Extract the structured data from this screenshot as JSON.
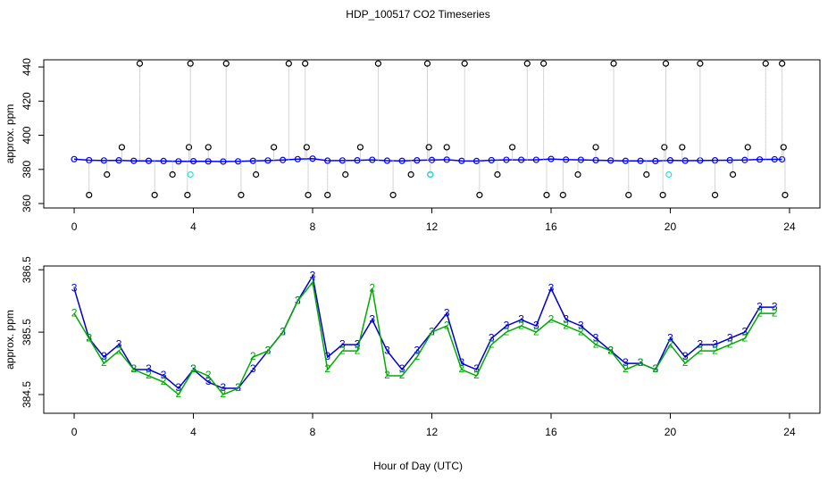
{
  "chart_data": [
    {
      "type": "line",
      "title": "HDP_100517  CO2 Timeseries",
      "ylabel": "approx. ppm",
      "xlim": [
        -1.02,
        25.02
      ],
      "xticks": [
        0,
        4,
        8,
        12,
        16,
        20,
        24
      ],
      "ylim": [
        357.4,
        444.2
      ],
      "yticks": [
        360,
        380,
        400,
        420,
        440
      ],
      "series": [
        {
          "style": "line+points",
          "color": "#0000ff",
          "x": [
            0,
            0.5,
            1,
            1.5,
            2,
            2.5,
            3,
            3.5,
            4,
            4.5,
            5,
            5.5,
            6,
            6.5,
            7,
            7.5,
            8,
            8.5,
            9,
            9.5,
            10,
            10.5,
            11,
            11.5,
            12,
            12.5,
            13,
            13.5,
            14,
            14.5,
            15,
            15.5,
            16,
            16.5,
            17,
            17.5,
            18,
            18.5,
            19,
            19.5,
            20,
            20.5,
            21,
            21.5,
            22,
            22.5,
            23,
            23.5,
            23.75
          ],
          "values": [
            386,
            385.4,
            385.2,
            385.3,
            385,
            385,
            384.9,
            384.7,
            384.8,
            384.7,
            384.6,
            384.7,
            385,
            385.2,
            385.5,
            386,
            386.3,
            385.1,
            385.2,
            385.3,
            385.6,
            385.1,
            385,
            385.3,
            385.5,
            385.7,
            385,
            384.9,
            385.4,
            385.6,
            385.6,
            385.6,
            386.1,
            385.7,
            385.6,
            385.4,
            385.2,
            385,
            385,
            384.9,
            385.3,
            385.1,
            385.2,
            385.3,
            385.4,
            385.5,
            385.8,
            385.9,
            385.9
          ]
        },
        {
          "style": "outliers",
          "color": "#000000",
          "x": [
            0.5,
            1.1,
            1.6,
            2.2,
            2.7,
            3.3,
            3.8,
            3.85,
            3.9,
            4.5,
            5.1,
            5.6,
            6.1,
            6.7,
            7.2,
            7.75,
            7.8,
            7.85,
            8.5,
            9.1,
            9.6,
            10.2,
            10.7,
            11.3,
            11.85,
            11.9,
            11.95,
            12.5,
            13.1,
            13.6,
            14.2,
            14.7,
            15.2,
            15.75,
            15.85,
            16.4,
            16.9,
            17.5,
            18.1,
            18.6,
            19.2,
            19.75,
            19.8,
            19.85,
            20.4,
            21,
            21.5,
            22.1,
            22.6,
            23.2,
            23.75,
            23.8,
            23.85
          ],
          "values": [
            365,
            377,
            393,
            442,
            365,
            377,
            365,
            393,
            442,
            393,
            442,
            365,
            377,
            393,
            442,
            442,
            393,
            365,
            365,
            377,
            393,
            442,
            365,
            377,
            442,
            393,
            377,
            393,
            442,
            365,
            377,
            393,
            442,
            442,
            365,
            365,
            377,
            393,
            442,
            365,
            377,
            365,
            393,
            442,
            393,
            442,
            365,
            377,
            393,
            442,
            442,
            393,
            365
          ]
        },
        {
          "style": "points",
          "color": "#33dddd",
          "x": [
            3.9,
            11.95,
            19.95
          ],
          "values": [
            377,
            377,
            377
          ]
        }
      ]
    },
    {
      "type": "line",
      "ylabel": "approx. ppm",
      "xlabel": "Hour of Day (UTC)",
      "xlim": [
        -1.02,
        25.02
      ],
      "xticks": [
        0,
        4,
        8,
        12,
        16,
        20,
        24
      ],
      "ylim": [
        384.2,
        386.56
      ],
      "yticks": [
        384.5,
        385.5,
        386.5
      ],
      "series": [
        {
          "style": "line+text",
          "marker": "3",
          "color": "#0000cc",
          "x": [
            0,
            0.5,
            1,
            1.5,
            2,
            2.5,
            3,
            3.5,
            4,
            4.5,
            5,
            5.5,
            6,
            6.5,
            7,
            7.5,
            8,
            8.5,
            9,
            9.5,
            10,
            10.5,
            11,
            11.5,
            12,
            12.5,
            13,
            13.5,
            14,
            14.5,
            15,
            15.5,
            16,
            16.5,
            17,
            17.5,
            18,
            18.5,
            19,
            19.5,
            20,
            20.5,
            21,
            21.5,
            22,
            22.5,
            23,
            23.5
          ],
          "values": [
            386.2,
            385.4,
            385.1,
            385.3,
            384.9,
            384.9,
            384.8,
            384.6,
            384.9,
            384.7,
            384.6,
            384.6,
            384.9,
            385.2,
            385.5,
            386,
            386.4,
            385.1,
            385.3,
            385.3,
            385.7,
            385.2,
            384.9,
            385.2,
            385.5,
            385.8,
            385,
            384.9,
            385.4,
            385.6,
            385.7,
            385.6,
            386.2,
            385.7,
            385.6,
            385.4,
            385.2,
            385,
            385,
            384.9,
            385.4,
            385.1,
            385.3,
            385.3,
            385.4,
            385.5,
            385.9,
            385.9
          ]
        },
        {
          "style": "line+text",
          "marker": "2",
          "color": "#00aa00",
          "x": [
            0,
            0.5,
            1,
            1.5,
            2,
            2.5,
            3,
            3.5,
            4,
            4.5,
            5,
            5.5,
            6,
            6.5,
            7,
            7.5,
            8,
            8.5,
            9,
            9.5,
            10,
            10.5,
            11,
            11.5,
            12,
            12.5,
            13,
            13.5,
            14,
            14.5,
            15,
            15.5,
            16,
            16.5,
            17,
            17.5,
            18,
            18.5,
            19,
            19.5,
            20,
            20.5,
            21,
            21.5,
            22,
            22.5,
            23,
            23.5
          ],
          "values": [
            385.8,
            385.4,
            385,
            385.2,
            384.9,
            384.8,
            384.7,
            384.5,
            384.9,
            384.8,
            384.5,
            384.6,
            385.1,
            385.2,
            385.5,
            386,
            386.3,
            384.9,
            385.2,
            385.2,
            386.2,
            384.8,
            384.8,
            385.1,
            385.5,
            385.6,
            384.9,
            384.8,
            385.3,
            385.5,
            385.6,
            385.5,
            385.7,
            385.6,
            385.5,
            385.3,
            385.2,
            384.9,
            385,
            384.9,
            385.3,
            385,
            385.2,
            385.2,
            385.3,
            385.4,
            385.8,
            385.8
          ]
        }
      ]
    }
  ]
}
